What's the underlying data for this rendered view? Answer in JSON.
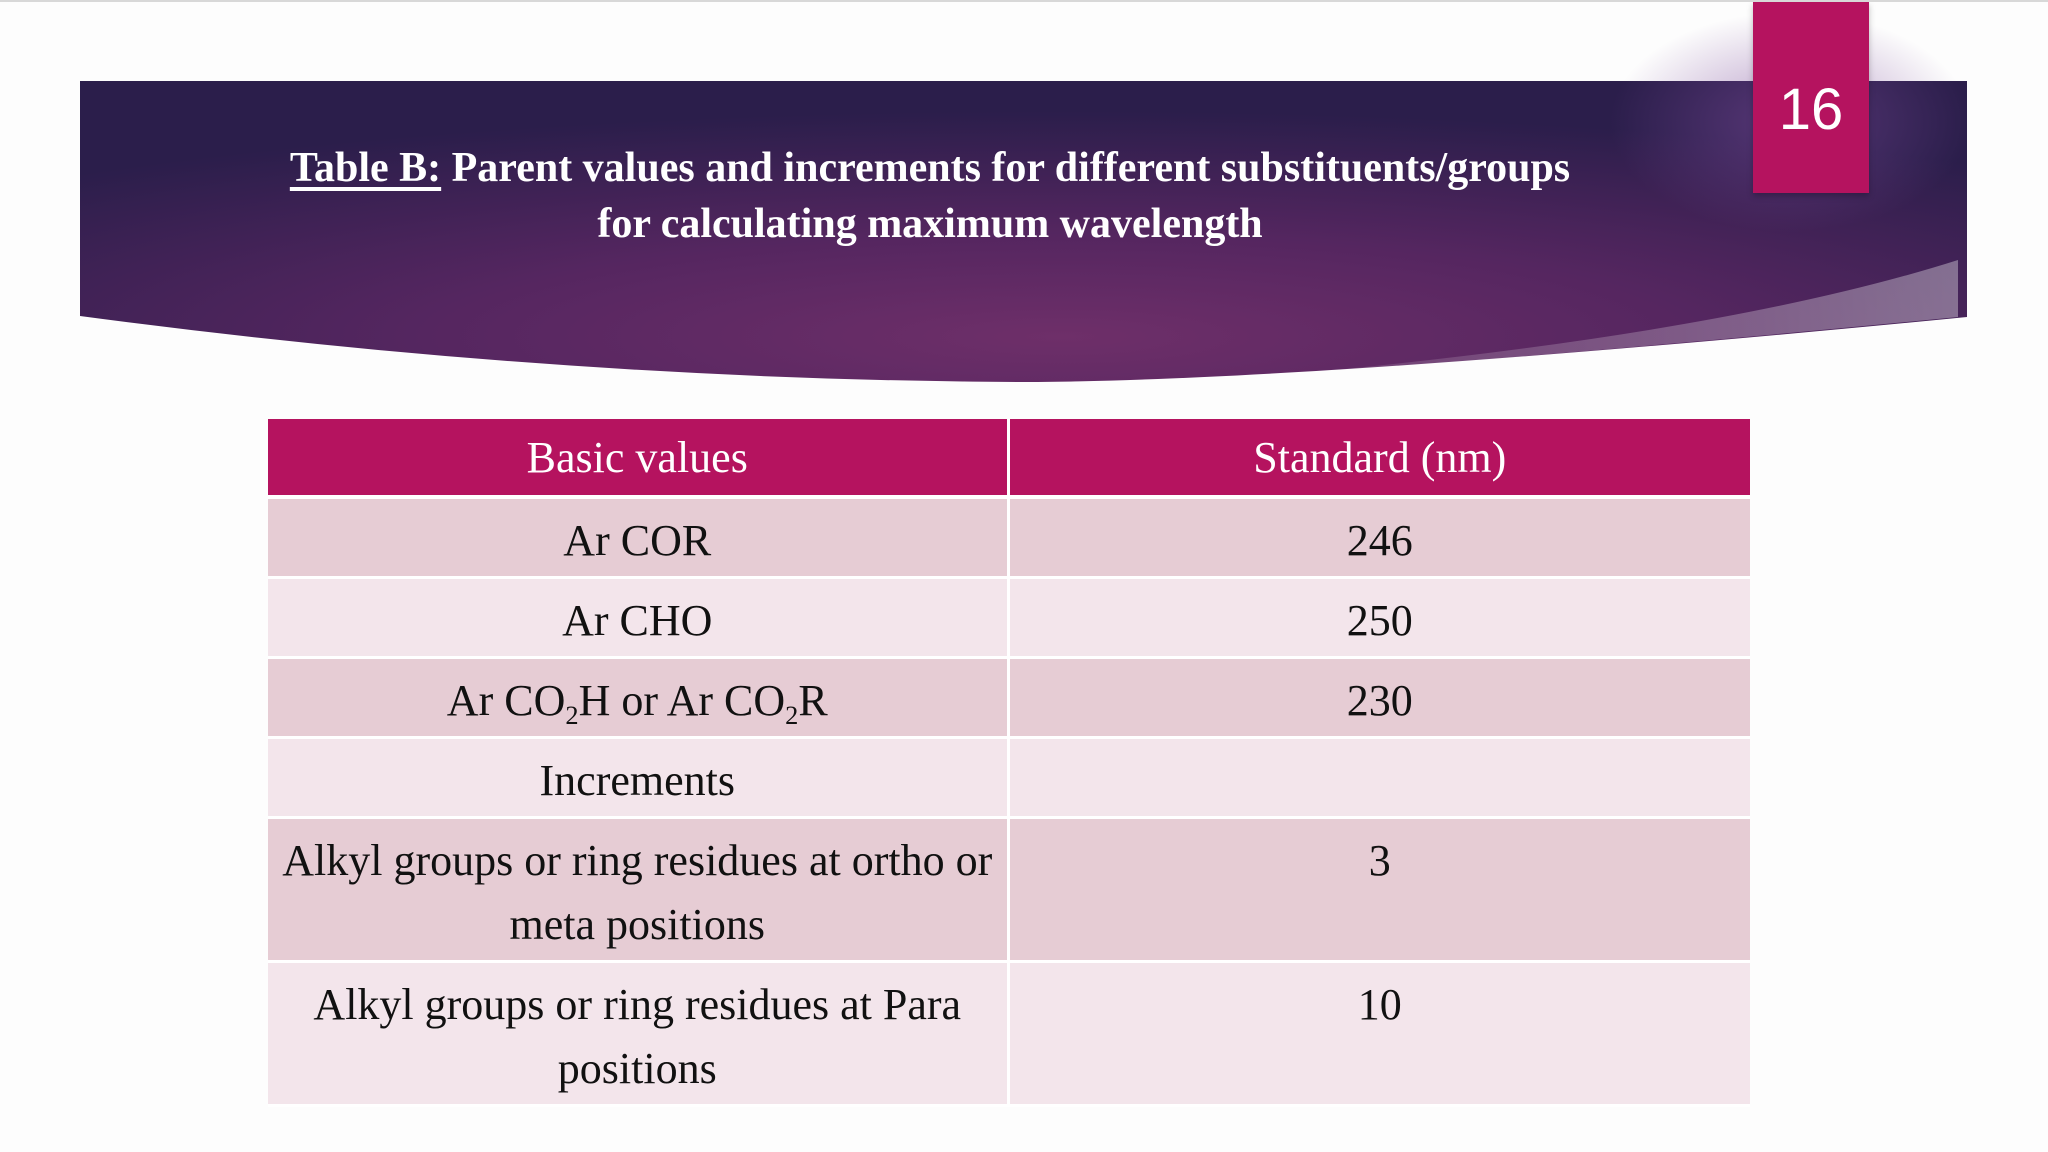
{
  "slide": {
    "number": "16",
    "title": {
      "label": "Table B:",
      "line1": " Parent values and increments for different substituents/groups",
      "line2": "for calculating maximum wavelength"
    }
  },
  "table": {
    "headers": [
      "Basic values",
      "Standard (nm)"
    ],
    "rows": [
      {
        "label": "Ar COR",
        "value": "246"
      },
      {
        "label": "Ar CHO",
        "value": "250"
      },
      {
        "label_parts": [
          "Ar CO",
          "2",
          "H or Ar CO",
          "2",
          "R"
        ],
        "value": "230"
      },
      {
        "label": "Increments",
        "value": ""
      },
      {
        "label": "Alkyl groups or ring residues at ortho or meta positions",
        "value": "3"
      },
      {
        "label": "Alkyl groups or ring residues at Para positions",
        "value": "10"
      }
    ]
  },
  "colors": {
    "accent": "#b5135f",
    "header_dark": "#2a1f4d",
    "header_mid": "#6a2d66",
    "row_dark": "#e6ccd4",
    "row_light": "#f3e5eb"
  }
}
